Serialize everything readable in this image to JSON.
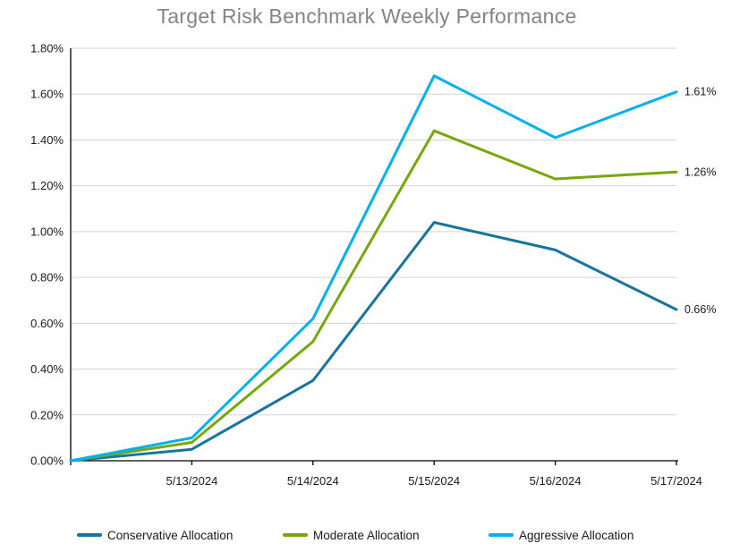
{
  "title": "Target Risk Benchmark Weekly Performance",
  "colors": {
    "title_text": "#848484",
    "axis": "#000000",
    "gridline": "#d3d3d3",
    "tick_label": "#1a1a1a",
    "data_label": "#1a1a1a"
  },
  "chart_data": {
    "type": "line",
    "title": "Target Risk Benchmark Weekly Performance",
    "x_labels": [
      "",
      "5/13/2024",
      "5/14/2024",
      "5/15/2024",
      "5/16/2024",
      "5/17/2024"
    ],
    "y_ticks": [
      "0.00%",
      "0.20%",
      "0.40%",
      "0.60%",
      "0.80%",
      "1.00%",
      "1.20%",
      "1.40%",
      "1.60%",
      "1.80%"
    ],
    "ylim": [
      0,
      1.8
    ],
    "y_step": 0.2,
    "grid": "horizontal",
    "legend_position": "bottom",
    "series": [
      {
        "name": "Conservative Allocation",
        "color": "#17749E",
        "values": [
          0.0,
          0.05,
          0.35,
          1.04,
          0.92,
          0.66
        ],
        "end_label": "0.66%"
      },
      {
        "name": "Moderate Allocation",
        "color": "#76A70B",
        "values": [
          0.0,
          0.08,
          0.52,
          1.44,
          1.23,
          1.26
        ],
        "end_label": "1.26%"
      },
      {
        "name": "Aggressive Allocation",
        "color": "#00B0F0",
        "values": [
          0.0,
          0.1,
          0.62,
          1.68,
          1.41,
          1.61
        ],
        "end_label": "1.61%"
      }
    ]
  }
}
